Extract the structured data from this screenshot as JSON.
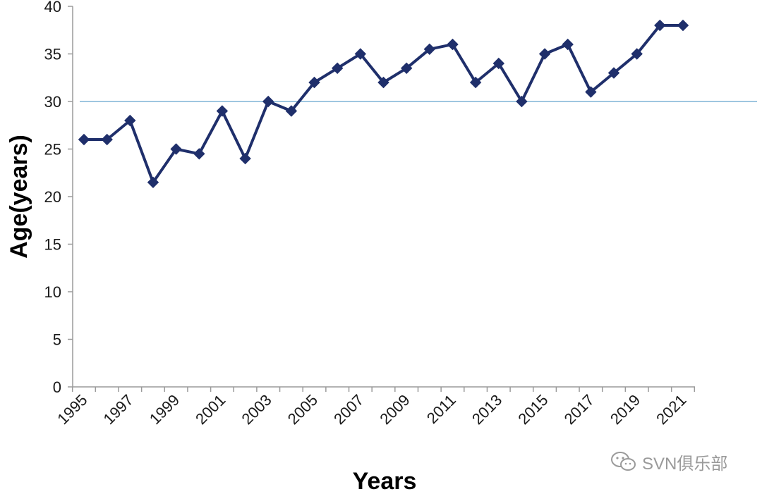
{
  "chart_data": {
    "type": "line",
    "title": "",
    "xlabel": "Years",
    "ylabel": "Age(years)",
    "x": [
      1995,
      1996,
      1997,
      1998,
      1999,
      2000,
      2001,
      2002,
      2003,
      2004,
      2005,
      2006,
      2007,
      2008,
      2009,
      2010,
      2011,
      2012,
      2013,
      2014,
      2015,
      2016,
      2017,
      2018,
      2019,
      2020,
      2021
    ],
    "x_tick_labels": [
      "1995",
      "1997",
      "1999",
      "2001",
      "2003",
      "2005",
      "2007",
      "2009",
      "2011",
      "2013",
      "2015",
      "2017",
      "2019",
      "2021"
    ],
    "y_tick_labels": [
      "0",
      "5",
      "10",
      "15",
      "20",
      "25",
      "30",
      "35",
      "40"
    ],
    "ylim": [
      0,
      40
    ],
    "xlim": [
      1995,
      2021
    ],
    "grid": false,
    "legend": "none",
    "series": [
      {
        "values": [
          26,
          26,
          28,
          21.5,
          25,
          24.5,
          29,
          24,
          30,
          29,
          32,
          33.5,
          35,
          32,
          33.5,
          35.5,
          36,
          32,
          34,
          30,
          35,
          36,
          31,
          33,
          35,
          38,
          38
        ],
        "color": "#1f2f6b",
        "marker": "diamond"
      }
    ],
    "reference_line": {
      "y": 30,
      "color": "#7fb3d5"
    },
    "axis_color": "#9a9a9a"
  },
  "watermark": {
    "text": "SVN俱乐部",
    "icon": "wechat-icon"
  }
}
